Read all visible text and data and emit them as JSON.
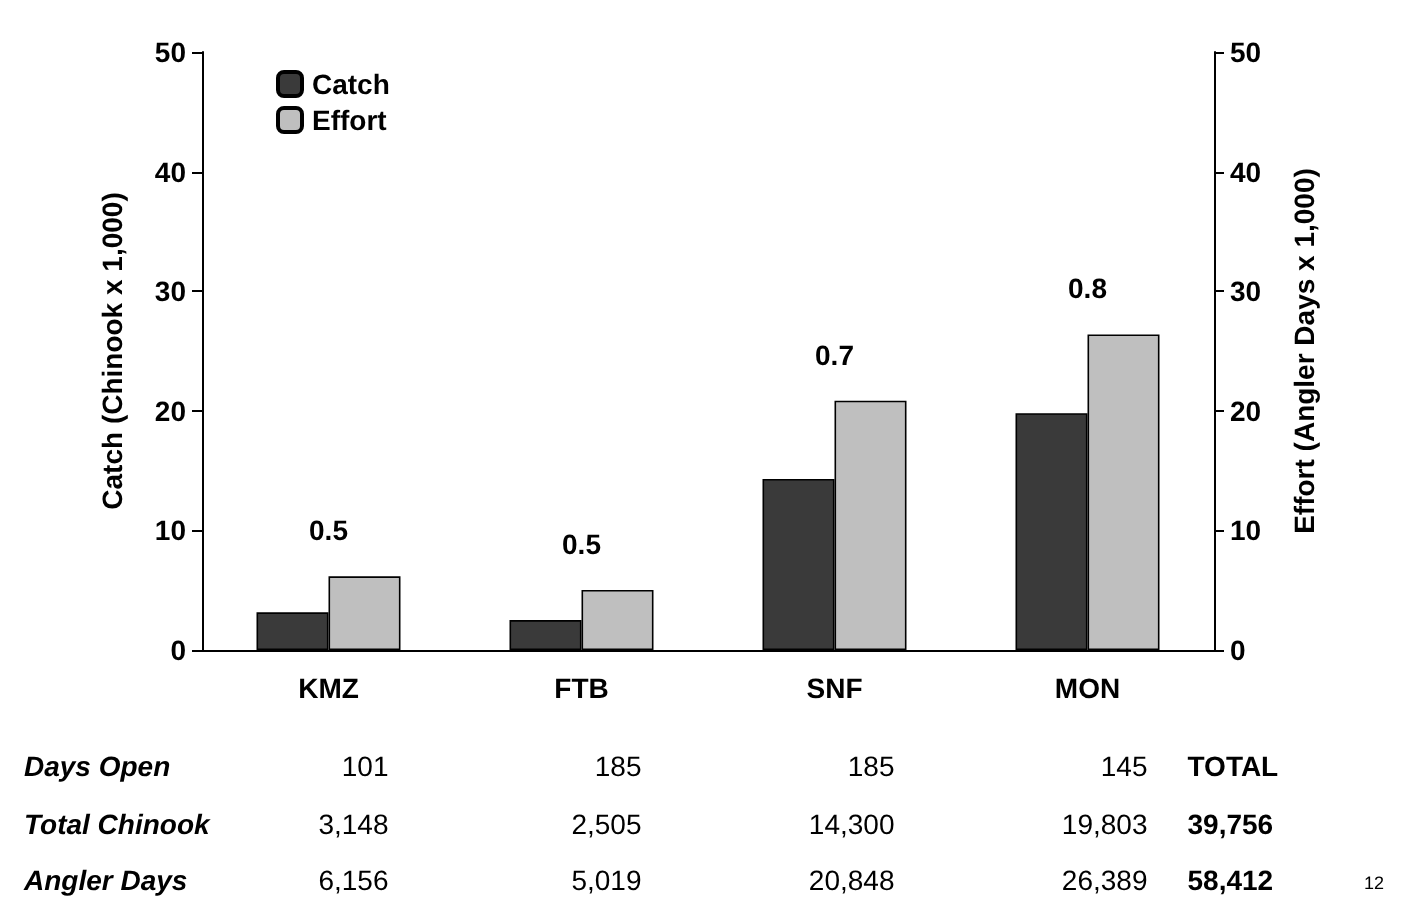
{
  "chart_data": {
    "type": "bar",
    "ylabel": "Catch (Chinook x 1,000)",
    "y2label": "Effort (Angler Days x 1,000)",
    "categories": [
      "KMZ",
      "FTB",
      "SNF",
      "MON"
    ],
    "series": [
      {
        "name": "Catch",
        "color": "#3a3a3a",
        "values": [
          3.148,
          2.505,
          14.3,
          19.803
        ]
      },
      {
        "name": "Effort",
        "color": "#bfbfbf",
        "values": [
          6.156,
          5.019,
          20.848,
          26.389
        ]
      }
    ],
    "ylim": [
      0,
      50
    ],
    "yticks": [
      0,
      10,
      20,
      30,
      40,
      50
    ],
    "y2lim": [
      0,
      50
    ],
    "y2ticks": [
      0,
      10,
      20,
      30,
      40,
      50
    ],
    "grid": false,
    "legend": "top left",
    "annotations": [
      "0.5",
      "0.5",
      "0.7",
      "0.8",
      "Days Open",
      "101",
      "185",
      "185",
      "145",
      "TOTAL",
      "Total Chinook",
      "3,148",
      "2,505",
      "14,300",
      "19,803",
      "39,756",
      "Angler Days",
      "6,156",
      "5,019",
      "20,848",
      "26,389",
      "58,412",
      "12"
    ]
  }
}
